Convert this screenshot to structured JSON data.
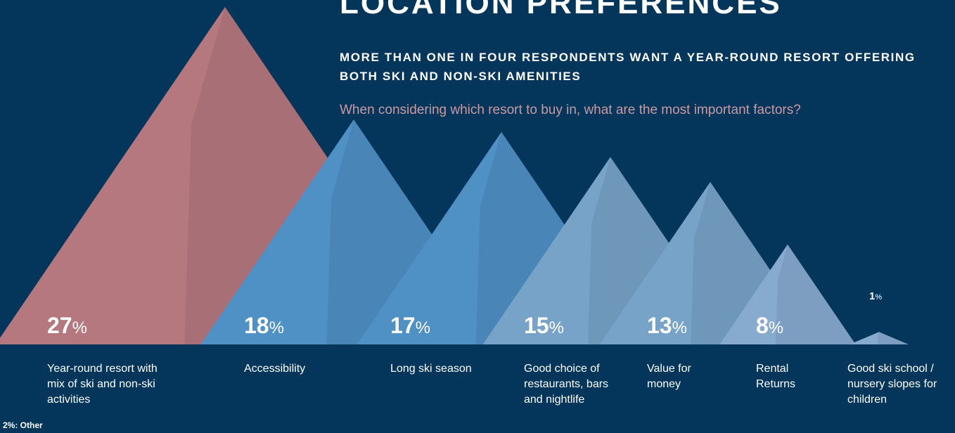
{
  "chart_data": {
    "type": "mountain",
    "title": "LOCATION PREFERENCES",
    "subtitle": "MORE THAN ONE IN FOUR RESPONDENTS WANT A YEAR-ROUND RESORT OFFERING BOTH SKI AND NON-SKI AMENITIES",
    "question": "When considering which resort to buy in, what are the most important factors?",
    "categories": [
      "Year-round resort with mix of ski and non-ski activities",
      "Accessibility",
      "Long ski season",
      "Good choice of restaurants, bars and nightlife",
      "Value for money",
      "Rental Returns",
      "Good ski school / nursery slopes for children"
    ],
    "values": [
      27,
      18,
      17,
      15,
      13,
      8,
      1
    ],
    "value_labels": [
      "27%",
      "18%",
      "17%",
      "15%",
      "13%",
      "8%",
      "1%"
    ],
    "colors": [
      "#b5787f",
      "#4f90c5",
      "#4f90c5",
      "#78a3c8",
      "#78a3c8",
      "#87abcf",
      "#87abcf"
    ],
    "note": "2%: Other"
  }
}
